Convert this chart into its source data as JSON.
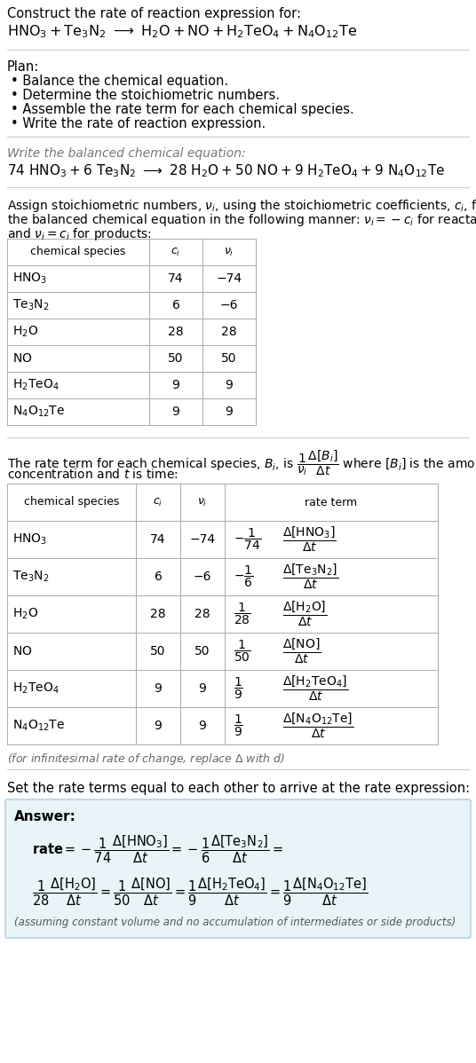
{
  "bg_color": "#ffffff",
  "separator_color": "#cccccc",
  "table_line_color": "#aaaaaa",
  "text_color": "#000000",
  "gray_text_color": "#666666",
  "answer_box_color": "#e8f4f8",
  "answer_box_border": "#aaccdd",
  "plan_items": [
    "• Balance the chemical equation.",
    "• Determine the stoichiometric numbers.",
    "• Assemble the rate term for each chemical species.",
    "• Write the rate of reaction expression."
  ],
  "species_math": [
    "$\\mathregular{HNO_3}$",
    "$\\mathregular{Te_3N_2}$",
    "$\\mathregular{H_2O}$",
    "$\\mathregular{NO}$",
    "$\\mathregular{H_2TeO_4}$",
    "$\\mathregular{N_4O_{12}Te}$"
  ],
  "ci_vals": [
    "74",
    "6",
    "28",
    "50",
    "9",
    "9"
  ],
  "ni_vals": [
    "−74",
    "−6",
    "28",
    "50",
    "9",
    "9"
  ]
}
